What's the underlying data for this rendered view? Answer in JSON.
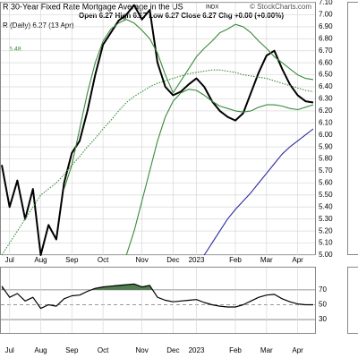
{
  "chart_data": [
    {
      "type": "line",
      "title": "R 30-Year Fixed Rate Mortgage Average in the US",
      "exchange": "INDX",
      "credit": "© StockCharts.com",
      "quote": "Open 6.27  High 6.27  Low 6.27  Close 6.27  Chg +0.00 (+0.00%)",
      "label": "R (Daily) 6.27 (13 Apr)",
      "annotation": "6.48",
      "categories": [
        null,
        "Jul",
        null,
        null,
        null,
        "Aug",
        null,
        null,
        null,
        "Sep",
        null,
        null,
        null,
        "Oct",
        null,
        null,
        null,
        null,
        "Nov",
        null,
        null,
        null,
        "Dec",
        null,
        null,
        "2023",
        null,
        null,
        null,
        null,
        "Feb",
        null,
        null,
        null,
        "Mar",
        null,
        null,
        null,
        "Apr",
        null,
        null
      ],
      "series": [
        {
          "color": "#000000",
          "values": [
            5.75,
            5.4,
            5.62,
            5.3,
            5.55,
            5.0,
            5.25,
            5.13,
            5.6,
            5.85,
            5.95,
            6.2,
            6.5,
            6.75,
            6.85,
            6.95,
            7.0,
            7.08,
            6.96,
            7.04,
            6.6,
            6.4,
            6.33,
            6.36,
            6.42,
            6.47,
            6.4,
            6.28,
            6.2,
            6.15,
            6.12,
            6.18,
            6.35,
            6.52,
            6.66,
            6.7,
            6.55,
            6.42,
            6.33,
            6.28,
            6.27
          ]
        },
        {
          "color": "#3a8a3a",
          "values": [
            null,
            null,
            null,
            null,
            null,
            null,
            null,
            null,
            5.55,
            5.75,
            6.05,
            6.35,
            6.6,
            6.78,
            6.88,
            6.93,
            6.96,
            6.93,
            6.87,
            6.8,
            6.68,
            6.5,
            6.35,
            6.45,
            6.55,
            6.65,
            6.72,
            6.78,
            6.85,
            6.88,
            6.92,
            6.9,
            6.85,
            6.78,
            6.72,
            6.65,
            6.6,
            6.55,
            6.5,
            6.47,
            6.46
          ]
        },
        {
          "color": "#3a8a3a",
          "values": [
            null,
            null,
            null,
            null,
            null,
            null,
            null,
            null,
            null,
            null,
            null,
            null,
            null,
            null,
            null,
            null,
            5.0,
            5.2,
            5.45,
            5.7,
            5.95,
            6.15,
            6.28,
            6.35,
            6.38,
            6.37,
            6.33,
            6.28,
            6.24,
            6.22,
            6.2,
            6.19,
            6.2,
            6.23,
            6.25,
            6.25,
            6.24,
            6.22,
            6.21,
            6.23,
            6.25
          ]
        },
        {
          "color": "#3a8a3a",
          "dash": true,
          "values": [
            5.0,
            5.1,
            5.2,
            5.3,
            5.4,
            5.5,
            5.55,
            5.6,
            5.67,
            5.75,
            5.82,
            5.9,
            5.97,
            6.05,
            6.12,
            6.2,
            6.27,
            6.32,
            6.36,
            6.4,
            6.43,
            6.45,
            6.47,
            6.49,
            6.51,
            6.52,
            6.53,
            6.54,
            6.54,
            6.53,
            6.52,
            6.5,
            6.49,
            6.48,
            6.47,
            6.45,
            6.43,
            6.41,
            6.39,
            6.37,
            6.36
          ]
        },
        {
          "color": "#2a2aa0",
          "values": [
            null,
            null,
            null,
            null,
            null,
            null,
            null,
            null,
            null,
            null,
            null,
            null,
            null,
            null,
            null,
            null,
            null,
            null,
            null,
            null,
            null,
            null,
            null,
            null,
            null,
            null,
            5.0,
            5.1,
            5.2,
            5.3,
            5.38,
            5.45,
            5.52,
            5.6,
            5.68,
            5.76,
            5.84,
            5.9,
            5.95,
            6.0,
            6.05
          ]
        }
      ],
      "ylim": [
        5.0,
        7.1
      ],
      "yticks": [
        {
          "value": 7.1,
          "label": "7.10"
        },
        {
          "value": 7.0,
          "label": "7.00"
        },
        {
          "value": 6.9,
          "label": "6.90"
        },
        {
          "value": 6.8,
          "label": "6.80"
        },
        {
          "value": 6.7,
          "label": "6.70"
        },
        {
          "value": 6.6,
          "label": "6.60"
        },
        {
          "value": 6.5,
          "label": "6.50"
        },
        {
          "value": 6.4,
          "label": "6.40"
        },
        {
          "value": 6.3,
          "label": "6.30"
        },
        {
          "value": 6.2,
          "label": "6.20"
        },
        {
          "value": 6.1,
          "label": "6.10"
        },
        {
          "value": 6.0,
          "label": "6.00"
        },
        {
          "value": 5.9,
          "label": "5.90"
        },
        {
          "value": 5.8,
          "label": "5.80"
        },
        {
          "value": 5.7,
          "label": "5.70"
        },
        {
          "value": 5.6,
          "label": "5.60"
        },
        {
          "value": 5.5,
          "label": "5.50"
        },
        {
          "value": 5.4,
          "label": "5.40"
        },
        {
          "value": 5.3,
          "label": "5.30"
        },
        {
          "value": 5.2,
          "label": "5.20"
        },
        {
          "value": 5.1,
          "label": "5.10"
        },
        {
          "value": 5.0,
          "label": "5.00"
        }
      ],
      "grid": true
    },
    {
      "type": "line",
      "categories": [
        null,
        "Jul",
        null,
        null,
        null,
        "Aug",
        null,
        null,
        null,
        "Sep",
        null,
        null,
        null,
        "Oct",
        null,
        null,
        null,
        null,
        "Nov",
        null,
        null,
        null,
        "Dec",
        null,
        null,
        "2023",
        null,
        null,
        null,
        null,
        "Feb",
        null,
        null,
        null,
        "Mar",
        null,
        null,
        null,
        "Apr",
        null,
        null
      ],
      "series": [
        {
          "color": "#000000",
          "fill": "#4f7f4f",
          "values": [
            75,
            60,
            65,
            55,
            60,
            45,
            50,
            48,
            58,
            62,
            63,
            68,
            72,
            74,
            75,
            76,
            77,
            78,
            74,
            76,
            60,
            56,
            54,
            55,
            56,
            57,
            53,
            50,
            48,
            47,
            47,
            50,
            55,
            60,
            63,
            64,
            58,
            54,
            51,
            50,
            50
          ]
        }
      ],
      "ylim": [
        12,
        100
      ],
      "yticks": [
        70,
        50,
        30
      ],
      "grid": true
    }
  ]
}
